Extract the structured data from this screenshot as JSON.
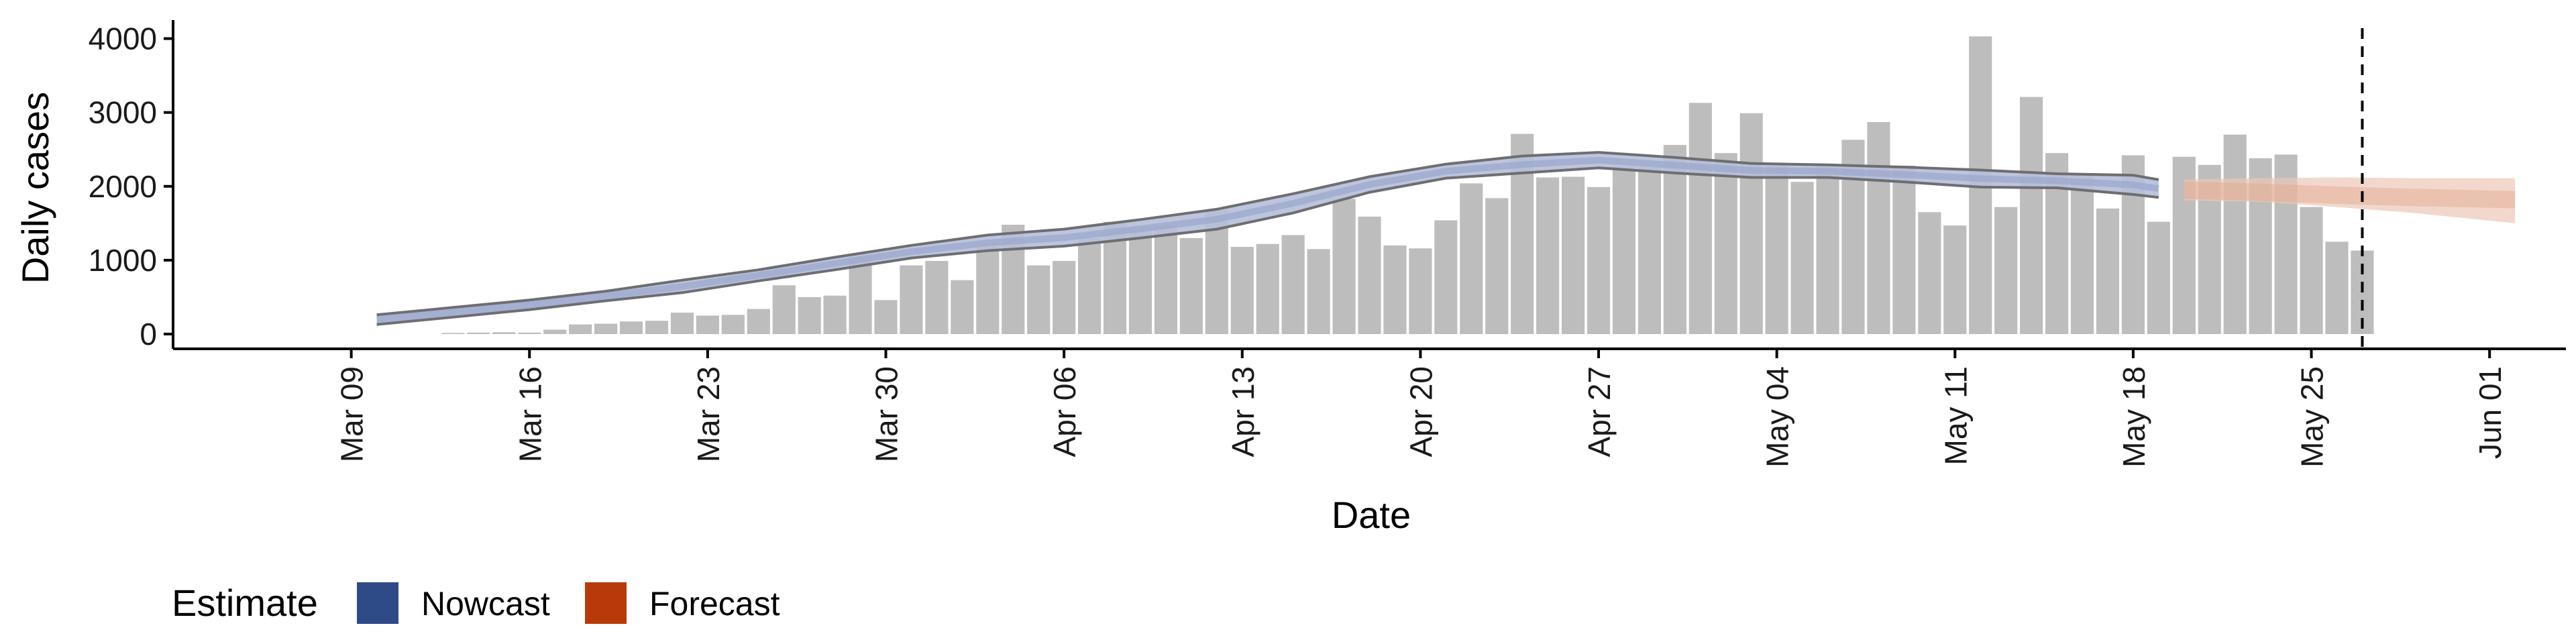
{
  "chart_data": {
    "type": "bar",
    "xlabel": "Date",
    "ylabel": "Daily cases",
    "ylim": [
      -200,
      4250
    ],
    "yticks": [
      0,
      1000,
      2000,
      3000,
      4000
    ],
    "xticks": [
      {
        "date": "2020-03-09",
        "label": "Mar 09"
      },
      {
        "date": "2020-03-16",
        "label": "Mar 16"
      },
      {
        "date": "2020-03-23",
        "label": "Mar 23"
      },
      {
        "date": "2020-03-30",
        "label": "Mar 30"
      },
      {
        "date": "2020-04-06",
        "label": "Apr 06"
      },
      {
        "date": "2020-04-13",
        "label": "Apr 13"
      },
      {
        "date": "2020-04-20",
        "label": "Apr 20"
      },
      {
        "date": "2020-04-27",
        "label": "Apr 27"
      },
      {
        "date": "2020-05-04",
        "label": "May 04"
      },
      {
        "date": "2020-05-11",
        "label": "May 11"
      },
      {
        "date": "2020-05-18",
        "label": "May 18"
      },
      {
        "date": "2020-05-25",
        "label": "May 25"
      },
      {
        "date": "2020-06-01",
        "label": "Jun 01"
      }
    ],
    "xlim": [
      "2020-03-02",
      "2020-06-04"
    ],
    "vline_date": "2020-05-27",
    "bar_dates": [
      "2020-03-13",
      "2020-03-14",
      "2020-03-15",
      "2020-03-16",
      "2020-03-17",
      "2020-03-18",
      "2020-03-19",
      "2020-03-20",
      "2020-03-21",
      "2020-03-22",
      "2020-03-23",
      "2020-03-24",
      "2020-03-25",
      "2020-03-26",
      "2020-03-27",
      "2020-03-28",
      "2020-03-29",
      "2020-03-30",
      "2020-03-31",
      "2020-04-01",
      "2020-04-02",
      "2020-04-03",
      "2020-04-04",
      "2020-04-05",
      "2020-04-06",
      "2020-04-07",
      "2020-04-08",
      "2020-04-09",
      "2020-04-10",
      "2020-04-11",
      "2020-04-12",
      "2020-04-13",
      "2020-04-14",
      "2020-04-15",
      "2020-04-16",
      "2020-04-17",
      "2020-04-18",
      "2020-04-19",
      "2020-04-20",
      "2020-04-21",
      "2020-04-22",
      "2020-04-23",
      "2020-04-24",
      "2020-04-25",
      "2020-04-26",
      "2020-04-27",
      "2020-04-28",
      "2020-04-29",
      "2020-04-30",
      "2020-05-01",
      "2020-05-02",
      "2020-05-03",
      "2020-05-04",
      "2020-05-05",
      "2020-05-06",
      "2020-05-07",
      "2020-05-08",
      "2020-05-09",
      "2020-05-10",
      "2020-05-11",
      "2020-05-12",
      "2020-05-13",
      "2020-05-14",
      "2020-05-15",
      "2020-05-16",
      "2020-05-17",
      "2020-05-18",
      "2020-05-19",
      "2020-05-20",
      "2020-05-21",
      "2020-05-22",
      "2020-05-23",
      "2020-05-24",
      "2020-05-25",
      "2020-05-26",
      "2020-05-27"
    ],
    "series": [
      {
        "type": "bar",
        "color": "#bdbdbd",
        "values": [
          15,
          20,
          25,
          20,
          60,
          130,
          140,
          170,
          180,
          290,
          250,
          260,
          340,
          660,
          500,
          520,
          1080,
          460,
          930,
          990,
          730,
          1230,
          1480,
          930,
          990,
          1300,
          1520,
          1450,
          1470,
          1300,
          1680,
          1180,
          1220,
          1340,
          1150,
          1830,
          1590,
          1200,
          1160,
          1540,
          2040,
          1840,
          2710,
          2120,
          2130,
          1990,
          2270,
          2260,
          2560,
          3130,
          2450,
          2990,
          2280,
          2060,
          2280,
          2630,
          2870,
          2280,
          1650,
          1470,
          4030,
          1720,
          3210,
          2450,
          2150,
          1700,
          2420,
          1520,
          2400,
          2290,
          2700,
          2380,
          2430,
          1720,
          1250,
          1130
        ]
      },
      {
        "name": "Nowcast",
        "type": "ribbon",
        "color": "#2b4787",
        "dates": [
          "2020-03-10",
          "2020-03-13",
          "2020-03-16",
          "2020-03-19",
          "2020-03-22",
          "2020-03-25",
          "2020-03-28",
          "2020-03-31",
          "2020-04-03",
          "2020-04-06",
          "2020-04-09",
          "2020-04-12",
          "2020-04-15",
          "2020-04-18",
          "2020-04-21",
          "2020-04-24",
          "2020-04-27",
          "2020-04-30",
          "2020-05-03",
          "2020-05-06",
          "2020-05-09",
          "2020-05-12",
          "2020-05-15",
          "2020-05-18",
          "2020-05-19"
        ],
        "lower": [
          130,
          230,
          330,
          450,
          560,
          720,
          870,
          1030,
          1130,
          1190,
          1300,
          1420,
          1640,
          1920,
          2110,
          2180,
          2250,
          2180,
          2120,
          2120,
          2060,
          1990,
          1980,
          1890,
          1850
        ],
        "upper": [
          260,
          360,
          460,
          580,
          730,
          870,
          1040,
          1200,
          1340,
          1420,
          1550,
          1690,
          1900,
          2130,
          2300,
          2410,
          2460,
          2390,
          2310,
          2290,
          2260,
          2220,
          2170,
          2150,
          2090
        ],
        "mid": [
          195,
          295,
          395,
          515,
          645,
          795,
          955,
          1115,
          1235,
          1305,
          1425,
          1555,
          1770,
          2025,
          2205,
          2295,
          2355,
          2285,
          2215,
          2205,
          2160,
          2105,
          2075,
          2020,
          1970
        ]
      },
      {
        "name": "Forecast",
        "type": "ribbon",
        "color": "#b83a0b",
        "dates": [
          "2020-05-20",
          "2020-05-23",
          "2020-05-26",
          "2020-05-29",
          "2020-06-02"
        ],
        "lower": [
          1810,
          1790,
          1720,
          1640,
          1500
        ],
        "upper": [
          2090,
          2110,
          2120,
          2110,
          2110
        ],
        "mid": [
          1950,
          1920,
          1880,
          1850,
          1820
        ]
      }
    ]
  },
  "legend": {
    "title": "Estimate",
    "items": [
      {
        "label": "Nowcast",
        "color": "#2e4a87"
      },
      {
        "label": "Forecast",
        "color": "#b83a0b"
      }
    ]
  },
  "colors": {
    "axis": "#000000",
    "vline": "#000000",
    "nowcast_band": "#b6bfd9",
    "nowcast_edge": "#6e6e72",
    "forecast_band": "#ecc7b7"
  }
}
